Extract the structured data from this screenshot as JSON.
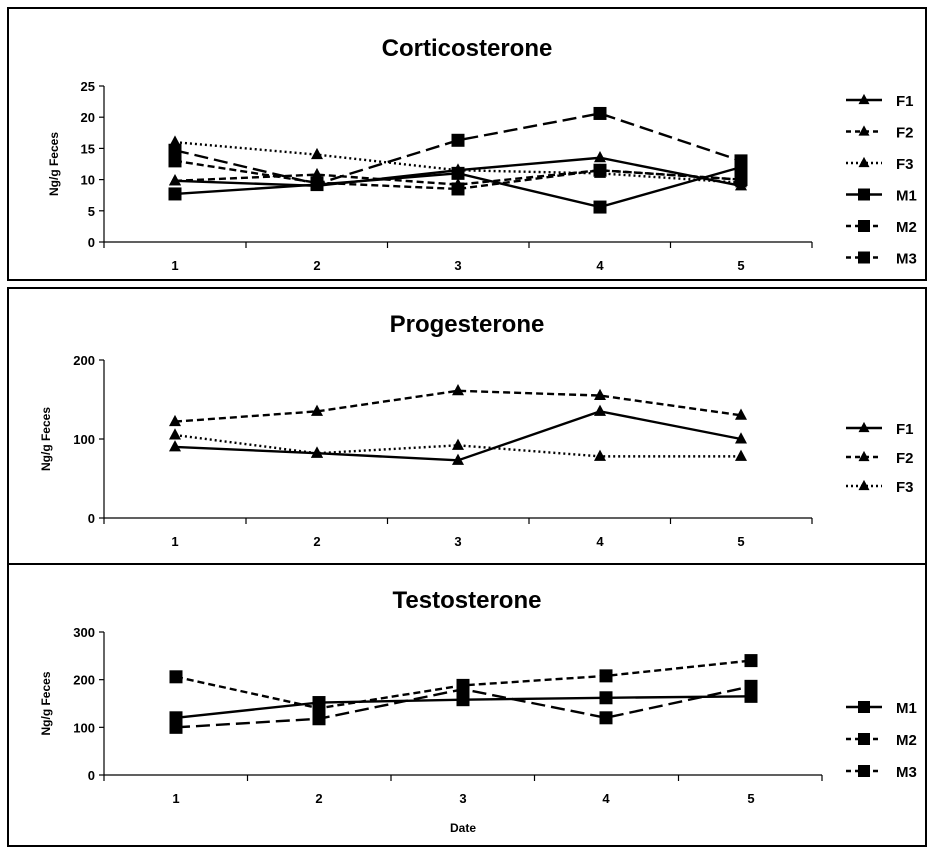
{
  "chart_data": [
    {
      "type": "line",
      "title": "Corticosterone",
      "ylabel": "Ng/g Feces",
      "xlabel": "",
      "categories": [
        "1",
        "2",
        "3",
        "4",
        "5"
      ],
      "ylim": [
        0,
        25
      ],
      "yticks": [
        0,
        5,
        10,
        15,
        20,
        25
      ],
      "legend_position": "right",
      "series": [
        {
          "name": "F1",
          "marker": "triangle",
          "dash": "solid",
          "values": [
            9.8,
            9.0,
            11.5,
            13.5,
            9.0
          ]
        },
        {
          "name": "F2",
          "marker": "triangle",
          "dash": "dashed",
          "values": [
            9.8,
            10.8,
            9.2,
            11.5,
            10.0
          ]
        },
        {
          "name": "F3",
          "marker": "triangle",
          "dash": "dotted",
          "values": [
            16.0,
            14.0,
            11.5,
            11.0,
            9.5
          ]
        },
        {
          "name": "M1",
          "marker": "square",
          "dash": "solid",
          "values": [
            7.7,
            9.2,
            11.0,
            5.6,
            12.0
          ]
        },
        {
          "name": "M2",
          "marker": "square",
          "dash": "dashed",
          "values": [
            13.0,
            9.5,
            8.5,
            11.5,
            10.0
          ]
        },
        {
          "name": "M3",
          "marker": "square",
          "dash": "longdash",
          "values": [
            14.7,
            9.3,
            16.3,
            20.6,
            13.0
          ]
        }
      ]
    },
    {
      "type": "line",
      "title": "Progesterone",
      "ylabel": "Ng/g Feces",
      "xlabel": "",
      "categories": [
        "1",
        "2",
        "3",
        "4",
        "5"
      ],
      "ylim": [
        0,
        200
      ],
      "yticks": [
        0,
        100,
        200
      ],
      "legend_position": "right",
      "series": [
        {
          "name": "F1",
          "marker": "triangle",
          "dash": "solid",
          "values": [
            90,
            82,
            73,
            135,
            100
          ]
        },
        {
          "name": "F2",
          "marker": "triangle",
          "dash": "dashed",
          "values": [
            122,
            135,
            161,
            155,
            130
          ]
        },
        {
          "name": "F3",
          "marker": "triangle",
          "dash": "dotted",
          "values": [
            105,
            82,
            92,
            78,
            78
          ]
        }
      ]
    },
    {
      "type": "line",
      "title": "Testosterone",
      "ylabel": "Ng/g Feces",
      "xlabel": "Date",
      "categories": [
        "1",
        "2",
        "3",
        "4",
        "5"
      ],
      "ylim": [
        0,
        300
      ],
      "yticks": [
        0,
        100,
        200,
        300
      ],
      "legend_position": "right",
      "series": [
        {
          "name": "M1",
          "marker": "square",
          "dash": "solid",
          "values": [
            120,
            152,
            158,
            162,
            165
          ]
        },
        {
          "name": "M2",
          "marker": "square",
          "dash": "dashed",
          "values": [
            206,
            140,
            188,
            208,
            240
          ]
        },
        {
          "name": "M3",
          "marker": "square",
          "dash": "longdash",
          "values": [
            100,
            118,
            180,
            120,
            186
          ]
        }
      ]
    }
  ]
}
